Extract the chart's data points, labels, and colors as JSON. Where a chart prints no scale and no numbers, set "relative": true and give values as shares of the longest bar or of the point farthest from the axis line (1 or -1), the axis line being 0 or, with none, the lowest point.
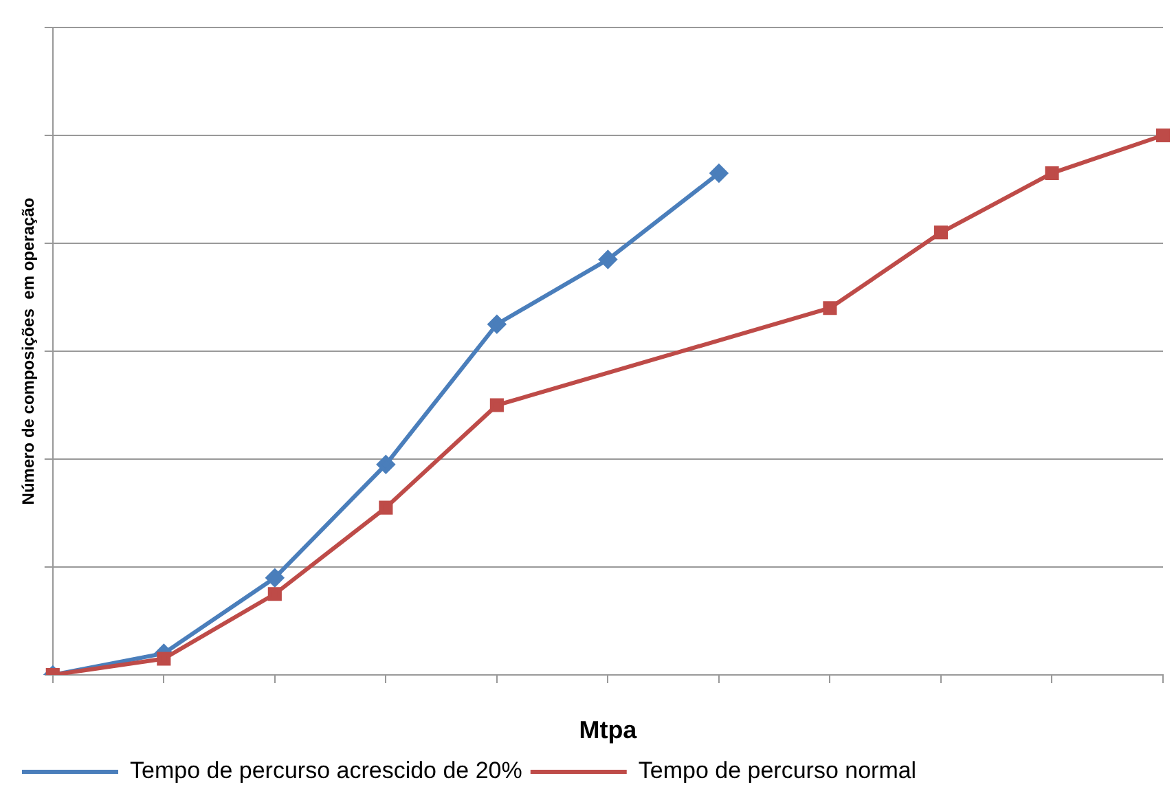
{
  "chart_data": {
    "type": "line",
    "relative": true,
    "xlabel": "Mtpa",
    "ylabel": "Número de composições  em operação",
    "grid": "y",
    "legend": "bottom",
    "line_style": "solid",
    "categories": [
      null,
      null,
      null,
      null,
      null,
      null,
      null,
      null,
      null,
      null,
      null
    ],
    "series": [
      {
        "name": "Tempo de percurso acrescido de 20%",
        "color": "#4a7ebb",
        "marker": "diamond",
        "values": [
          0,
          0.04,
          0.18,
          0.39,
          0.65,
          0.77,
          0.93,
          null,
          null,
          null,
          null
        ]
      },
      {
        "name": "Tempo de percurso normal",
        "color": "#be4b48",
        "marker": "square",
        "values": [
          0,
          0.03,
          0.15,
          0.31,
          0.5,
          null,
          null,
          0.68,
          0.82,
          0.93,
          1
        ]
      }
    ]
  }
}
